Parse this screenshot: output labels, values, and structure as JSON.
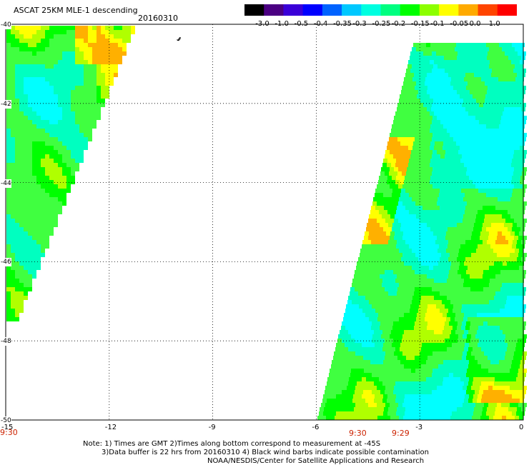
{
  "header": {
    "title": "ASCAT 25KM MLE-1 descending",
    "date": "20160310"
  },
  "colorbar": {
    "labels": [
      "-3.0",
      "-1.0",
      "-0.5",
      "-0.4",
      "-0.35",
      "-0.3",
      "-0.25",
      "-0.2",
      "-0.15",
      "-0.1",
      "-0.05",
      "0.0",
      "1.0"
    ],
    "colors": [
      "#000000",
      "#4b0082",
      "#3a00d8",
      "#0000ff",
      "#0062ff",
      "#00c8ff",
      "#00ffe0",
      "#00ff80",
      "#00ff00",
      "#8cff00",
      "#ffff00",
      "#ffaa00",
      "#ff4400",
      "#ff0000"
    ]
  },
  "map": {
    "lat_labels": [
      "-40",
      "-42",
      "-44",
      "-46",
      "-48",
      "-50"
    ],
    "lon_labels": [
      "-15",
      "-12",
      "-9",
      "-6",
      "-3",
      "0"
    ],
    "times": [
      "9:30",
      "9:30",
      "9:29"
    ]
  },
  "footer": {
    "line1": "Note: 1) Times are GMT 2)Times along bottom correspond to measurement at -45S",
    "line2": "3)Data buffer is 22 hrs from 20160310 4) Black wind barbs indicate possible contamination",
    "line3": "NOAA/NESDIS/Center for Satellite Applications and Research"
  }
}
